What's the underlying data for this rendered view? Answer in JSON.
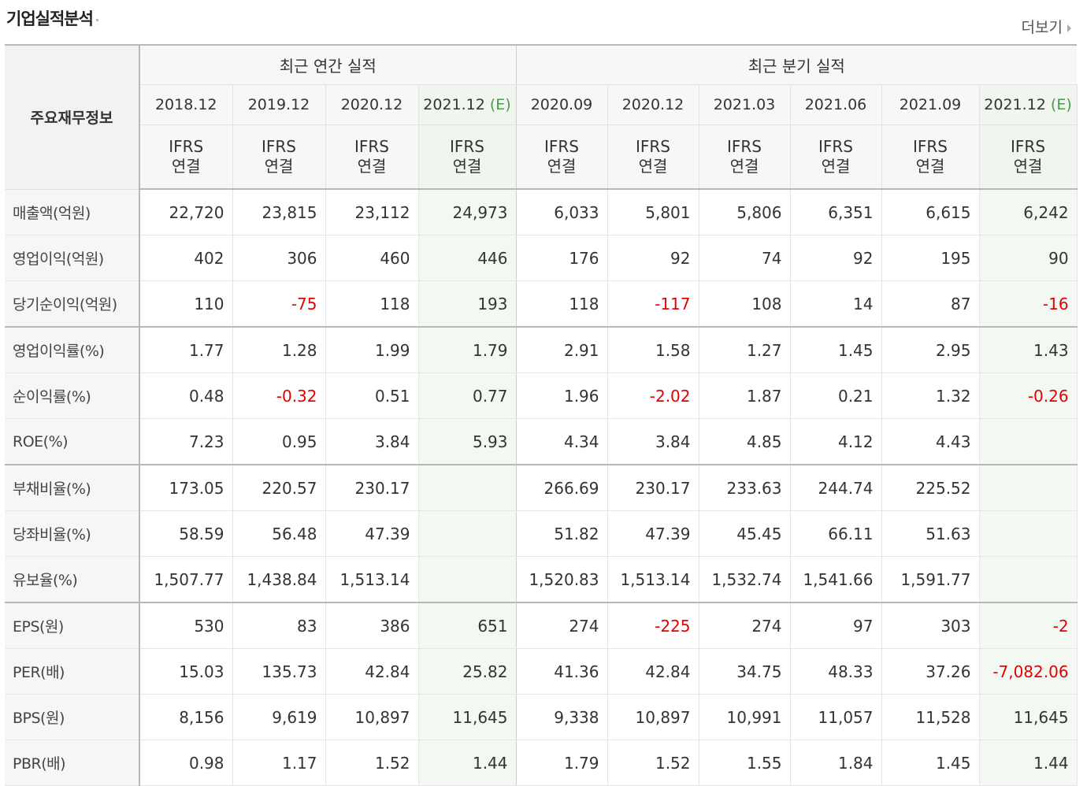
{
  "page": {
    "title": "기업실적분석",
    "more_label": "더보기"
  },
  "table": {
    "corner_label": "주요재무정보",
    "annual_header": "최근 연간 실적",
    "quarter_header": "최근 분기 실적",
    "ifrs_line1": "IFRS",
    "ifrs_line2": "연결",
    "estimate_mark": "(E)",
    "annual_periods": [
      "2018.12",
      "2019.12",
      "2020.12",
      "2021.12"
    ],
    "quarter_periods": [
      "2020.09",
      "2020.12",
      "2021.03",
      "2021.06",
      "2021.09",
      "2021.12"
    ],
    "rows": [
      {
        "label": "매출액(억원)",
        "values": [
          "22,720",
          "23,815",
          "23,112",
          "24,973",
          "6,033",
          "5,801",
          "5,806",
          "6,351",
          "6,615",
          "6,242"
        ]
      },
      {
        "label": "영업이익(억원)",
        "values": [
          "402",
          "306",
          "460",
          "446",
          "176",
          "92",
          "74",
          "92",
          "195",
          "90"
        ]
      },
      {
        "label": "당기순이익(억원)",
        "values": [
          "110",
          "-75",
          "118",
          "193",
          "118",
          "-117",
          "108",
          "14",
          "87",
          "-16"
        ]
      },
      {
        "label": "영업이익률(%)",
        "values": [
          "1.77",
          "1.28",
          "1.99",
          "1.79",
          "2.91",
          "1.58",
          "1.27",
          "1.45",
          "2.95",
          "1.43"
        ]
      },
      {
        "label": "순이익률(%)",
        "values": [
          "0.48",
          "-0.32",
          "0.51",
          "0.77",
          "1.96",
          "-2.02",
          "1.87",
          "0.21",
          "1.32",
          "-0.26"
        ]
      },
      {
        "label": "ROE(%)",
        "values": [
          "7.23",
          "0.95",
          "3.84",
          "5.93",
          "4.34",
          "3.84",
          "4.85",
          "4.12",
          "4.43",
          ""
        ]
      },
      {
        "label": "부채비율(%)",
        "values": [
          "173.05",
          "220.57",
          "230.17",
          "",
          "266.69",
          "230.17",
          "233.63",
          "244.74",
          "225.52",
          ""
        ]
      },
      {
        "label": "당좌비율(%)",
        "values": [
          "58.59",
          "56.48",
          "47.39",
          "",
          "51.82",
          "47.39",
          "45.45",
          "66.11",
          "51.63",
          ""
        ]
      },
      {
        "label": "유보율(%)",
        "values": [
          "1,507.77",
          "1,438.84",
          "1,513.14",
          "",
          "1,520.83",
          "1,513.14",
          "1,532.74",
          "1,541.66",
          "1,591.77",
          ""
        ]
      },
      {
        "label": "EPS(원)",
        "values": [
          "530",
          "83",
          "386",
          "651",
          "274",
          "-225",
          "274",
          "97",
          "303",
          "-2"
        ]
      },
      {
        "label": "PER(배)",
        "values": [
          "15.03",
          "135.73",
          "42.84",
          "25.82",
          "41.36",
          "42.84",
          "34.75",
          "48.33",
          "37.26",
          "-7,082.06"
        ]
      },
      {
        "label": "BPS(원)",
        "values": [
          "8,156",
          "9,619",
          "10,897",
          "11,645",
          "9,338",
          "10,897",
          "10,991",
          "11,057",
          "11,528",
          "11,645"
        ]
      },
      {
        "label": "PBR(배)",
        "values": [
          "0.98",
          "1.17",
          "1.52",
          "1.44",
          "1.79",
          "1.52",
          "1.55",
          "1.84",
          "1.45",
          "1.44"
        ]
      }
    ]
  },
  "colors": {
    "negative": "#e60000",
    "ifrs": "#e8643a",
    "estimate_bg": "#f3f8f2",
    "estimate_mark": "#4a9a4a"
  }
}
